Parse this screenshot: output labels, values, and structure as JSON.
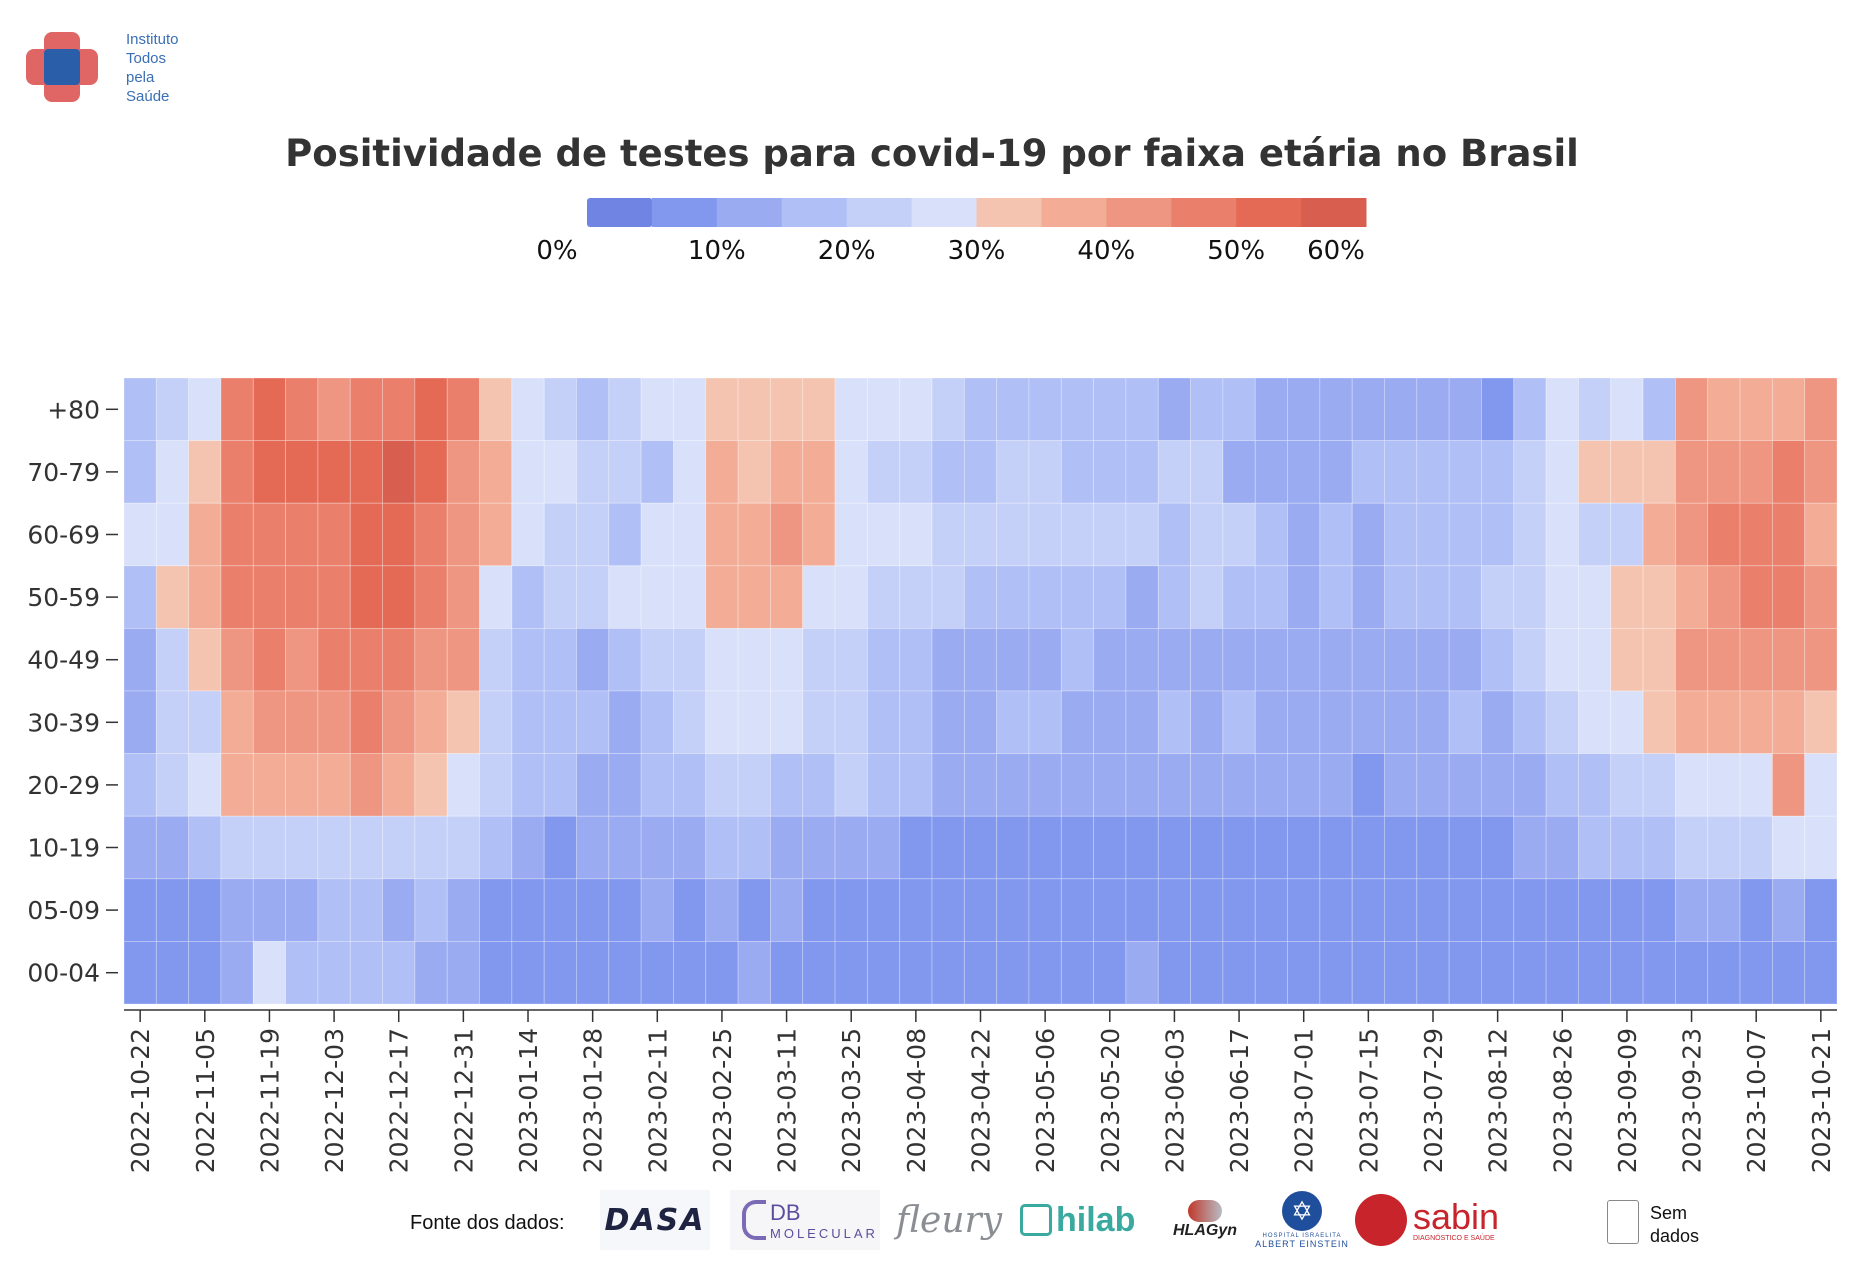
{
  "logo": {
    "lines": [
      "Instituto",
      "Todos",
      "pela",
      "Saúde"
    ]
  },
  "title": "Positividade de testes para covid-19 por faixa etária no Brasil",
  "legend": {
    "tick_labels": [
      "0%",
      "10%",
      "20%",
      "30%",
      "40%",
      "50%",
      "60%"
    ],
    "colors": [
      "#7084e4",
      "#8298ee",
      "#9aabf2",
      "#b0bff6",
      "#c5d0f8",
      "#d9e1fa",
      "#f5c4b0",
      "#f3ad96",
      "#ef9682",
      "#ea806c",
      "#e46a56",
      "#d85f50"
    ]
  },
  "chart_data": {
    "type": "heatmap",
    "title": "Positividade de testes para covid-19 por faixa etária no Brasil",
    "value_unit": "%",
    "value_range": [
      0,
      60
    ],
    "x_tick_labels": [
      "2022-10-22",
      "2022-11-05",
      "2022-11-19",
      "2022-12-03",
      "2022-12-17",
      "2022-12-31",
      "2023-01-14",
      "2023-01-28",
      "2023-02-11",
      "2023-02-25",
      "2023-03-11",
      "2023-03-25",
      "2023-04-08",
      "2023-04-22",
      "2023-05-06",
      "2023-05-20",
      "2023-06-03",
      "2023-06-17",
      "2023-07-01",
      "2023-07-15",
      "2023-07-29",
      "2023-08-12",
      "2023-08-26",
      "2023-09-09",
      "2023-09-23",
      "2023-10-07",
      "2023-10-21"
    ],
    "weeks": [
      "2022-10-22",
      "2022-10-29",
      "2022-11-05",
      "2022-11-12",
      "2022-11-19",
      "2022-11-26",
      "2022-12-03",
      "2022-12-10",
      "2022-12-17",
      "2022-12-24",
      "2022-12-31",
      "2023-01-07",
      "2023-01-14",
      "2023-01-21",
      "2023-01-28",
      "2023-02-04",
      "2023-02-11",
      "2023-02-18",
      "2023-02-25",
      "2023-03-04",
      "2023-03-11",
      "2023-03-18",
      "2023-03-25",
      "2023-04-01",
      "2023-04-08",
      "2023-04-15",
      "2023-04-22",
      "2023-04-29",
      "2023-05-06",
      "2023-05-13",
      "2023-05-20",
      "2023-05-27",
      "2023-06-03",
      "2023-06-10",
      "2023-06-17",
      "2023-06-24",
      "2023-07-01",
      "2023-07-08",
      "2023-07-15",
      "2023-07-22",
      "2023-07-29",
      "2023-08-05",
      "2023-08-12",
      "2023-08-19",
      "2023-08-26",
      "2023-09-02",
      "2023-09-09",
      "2023-09-16",
      "2023-09-23",
      "2023-09-30",
      "2023-10-07",
      "2023-10-14",
      "2023-10-21"
    ],
    "age_groups": [
      "+80",
      "70-79",
      "60-69",
      "50-59",
      "40-49",
      "30-39",
      "20-29",
      "10-19",
      "05-09",
      "00-04"
    ],
    "values": [
      [
        18,
        22,
        27,
        45,
        50,
        49,
        42,
        49,
        45,
        52,
        47,
        32,
        25,
        21,
        19,
        20,
        26,
        27,
        32,
        32,
        33,
        31,
        29,
        28,
        25,
        23,
        16,
        19,
        18,
        15,
        15,
        17,
        14,
        17,
        17,
        14,
        10,
        10,
        12,
        11,
        10,
        13,
        9,
        17,
        27,
        22,
        28,
        18,
        42,
        38,
        38,
        37,
        42
      ],
      [
        16,
        28,
        32,
        46,
        50,
        51,
        50,
        54,
        57,
        51,
        42,
        38,
        27,
        25,
        23,
        23,
        19,
        25,
        38,
        30,
        38,
        38,
        27,
        23,
        21,
        17,
        16,
        21,
        21,
        18,
        19,
        18,
        21,
        21,
        10,
        11,
        12,
        10,
        16,
        16,
        16,
        18,
        15,
        21,
        27,
        30,
        30,
        30,
        44,
        42,
        43,
        48,
        43
      ],
      [
        25,
        26,
        37,
        45,
        49,
        46,
        49,
        50,
        51,
        49,
        42,
        38,
        25,
        22,
        21,
        19,
        27,
        29,
        37,
        37,
        42,
        38,
        28,
        25,
        25,
        22,
        21,
        21,
        21,
        21,
        20,
        20,
        19,
        22,
        21,
        15,
        14,
        15,
        10,
        15,
        16,
        17,
        16,
        20,
        27,
        22,
        24,
        38,
        43,
        46,
        47,
        46,
        38
      ],
      [
        17,
        30,
        38,
        45,
        46,
        47,
        49,
        50,
        50,
        45,
        40,
        29,
        19,
        22,
        23,
        25,
        27,
        28,
        38,
        38,
        38,
        28,
        28,
        23,
        24,
        20,
        19,
        19,
        16,
        15,
        17,
        14,
        18,
        21,
        16,
        16,
        14,
        15,
        12,
        17,
        18,
        16,
        21,
        23,
        26,
        26,
        30,
        30,
        38,
        40,
        47,
        45,
        44
      ],
      [
        11,
        20,
        30,
        44,
        46,
        44,
        45,
        46,
        46,
        43,
        40,
        23,
        16,
        16,
        14,
        16,
        21,
        24,
        29,
        29,
        29,
        22,
        20,
        19,
        16,
        14,
        12,
        12,
        13,
        15,
        13,
        13,
        13,
        12,
        14,
        12,
        12,
        12,
        13,
        14,
        12,
        14,
        16,
        21,
        25,
        29,
        30,
        30,
        40,
        40,
        41,
        42,
        40
      ],
      [
        13,
        20,
        24,
        38,
        40,
        41,
        42,
        45,
        41,
        38,
        30,
        20,
        18,
        16,
        15,
        13,
        19,
        20,
        26,
        26,
        25,
        24,
        20,
        18,
        17,
        14,
        13,
        15,
        15,
        14,
        14,
        12,
        17,
        14,
        15,
        13,
        12,
        13,
        12,
        13,
        12,
        15,
        14,
        18,
        20,
        26,
        28,
        30,
        37,
        37,
        38,
        37,
        30
      ],
      [
        16,
        20,
        25,
        36,
        38,
        39,
        39,
        40,
        37,
        32,
        26,
        20,
        15,
        15,
        10,
        13,
        15,
        19,
        23,
        23,
        19,
        18,
        20,
        19,
        16,
        14,
        10,
        13,
        12,
        11,
        10,
        13,
        14,
        10,
        12,
        11,
        10,
        11,
        8,
        10,
        11,
        10,
        10,
        12,
        16,
        17,
        22,
        22,
        25,
        27,
        28,
        43,
        25
      ],
      [
        12,
        10,
        16,
        24,
        23,
        24,
        23,
        24,
        24,
        24,
        20,
        15,
        10,
        9,
        10,
        10,
        13,
        14,
        16,
        15,
        14,
        13,
        12,
        10,
        8,
        6,
        6,
        6,
        7,
        5,
        5,
        5,
        5,
        5,
        5,
        5,
        5,
        5,
        5,
        6,
        5,
        9,
        9,
        12,
        14,
        15,
        16,
        18,
        20,
        23,
        24,
        25,
        25
      ],
      [
        6,
        6,
        8,
        10,
        12,
        14,
        16,
        17,
        14,
        16,
        10,
        9,
        8,
        9,
        9,
        9,
        10,
        9,
        10,
        8,
        10,
        8,
        7,
        6,
        7,
        6,
        7,
        6,
        5,
        5,
        6,
        5,
        6,
        6,
        5,
        5,
        6,
        5,
        6,
        6,
        5,
        5,
        6,
        6,
        8,
        6,
        6,
        7,
        10,
        13,
        9,
        10,
        8
      ],
      [
        7,
        6,
        8,
        11,
        28,
        15,
        15,
        17,
        16,
        10,
        10,
        9,
        8,
        9,
        7,
        7,
        7,
        5,
        9,
        10,
        6,
        8,
        9,
        7,
        7,
        7,
        7,
        7,
        6,
        6,
        6,
        10,
        7,
        7,
        7,
        7,
        7,
        6,
        7,
        7,
        6,
        6,
        6,
        6,
        6,
        7,
        6,
        7,
        7,
        7,
        7,
        8,
        8
      ]
    ],
    "legend_extra": "Sem dados",
    "source_label": "Fonte dos dados:",
    "sources": [
      "DASA",
      "DB Molecular",
      "fleury",
      "hilab",
      "HLAGyn",
      "Albert Einstein",
      "sabin"
    ]
  },
  "footer": {
    "source_label": "Fonte dos dados:",
    "sem_dados_lines": [
      "Sem",
      "dados"
    ],
    "logos": {
      "dasa": "DASA",
      "db_main": "DB",
      "db_sub": "MOLECULAR",
      "fleury": "fleury",
      "hilab": "hilab",
      "hlagyn": "HLAGyn",
      "einstein_sub1": "HOSPITAL ISRAELITA",
      "einstein_sub2": "ALBERT EINSTEIN",
      "sabin": "sabin",
      "sabin_sub": "DIAGNÓSTICO E SAÚDE"
    }
  }
}
